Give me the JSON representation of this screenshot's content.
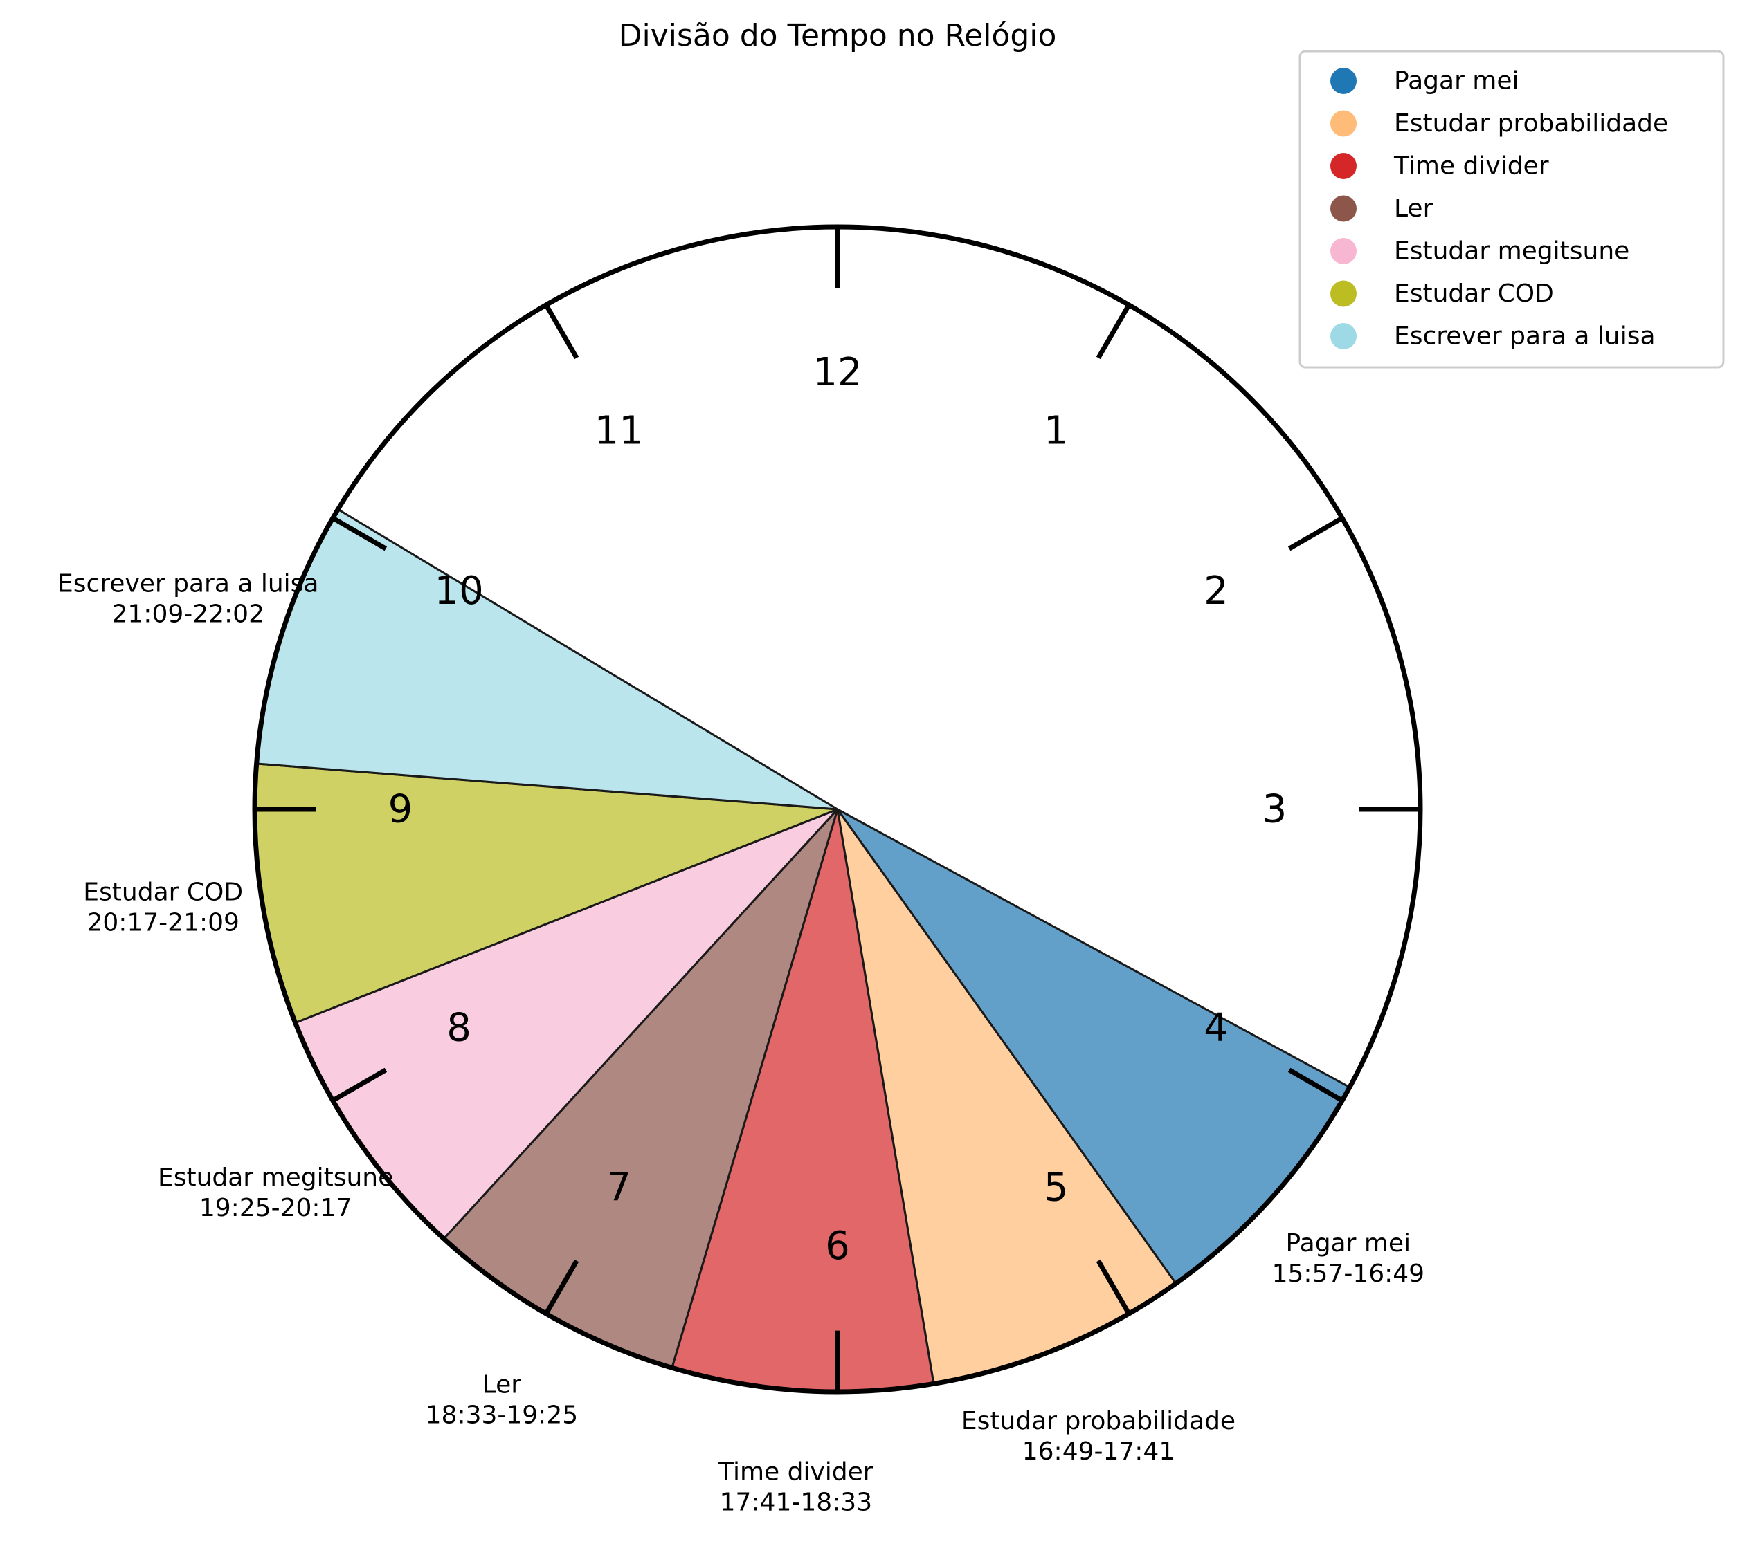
{
  "chart_data": {
    "type": "pie",
    "title": "Divisão do Tempo no Relógio",
    "hour_labels": [
      "12",
      "1",
      "2",
      "3",
      "4",
      "5",
      "6",
      "7",
      "8",
      "9",
      "10",
      "11"
    ],
    "segments": [
      {
        "name": "Pagar mei",
        "start": "15:57",
        "end": "16:49",
        "range": "15:57-16:49",
        "color": "#1f77b4"
      },
      {
        "name": "Estudar probabilidade",
        "start": "16:49",
        "end": "17:41",
        "range": "16:49-17:41",
        "color": "#ffbb78"
      },
      {
        "name": "Time divider",
        "start": "17:41",
        "end": "18:33",
        "range": "17:41-18:33",
        "color": "#d62728"
      },
      {
        "name": "Ler",
        "start": "18:33",
        "end": "19:25",
        "range": "18:33-19:25",
        "color": "#8c564b"
      },
      {
        "name": "Estudar megitsune",
        "start": "19:25",
        "end": "20:17",
        "range": "19:25-20:17",
        "color": "#f7b6d2"
      },
      {
        "name": "Estudar COD",
        "start": "20:17",
        "end": "21:09",
        "range": "20:17-21:09",
        "color": "#bcbd22"
      },
      {
        "name": "Escrever para a luisa",
        "start": "21:09",
        "end": "22:02",
        "range": "21:09-22:02",
        "color": "#9edae5"
      }
    ],
    "legend_position": "top-right",
    "grid": false
  }
}
